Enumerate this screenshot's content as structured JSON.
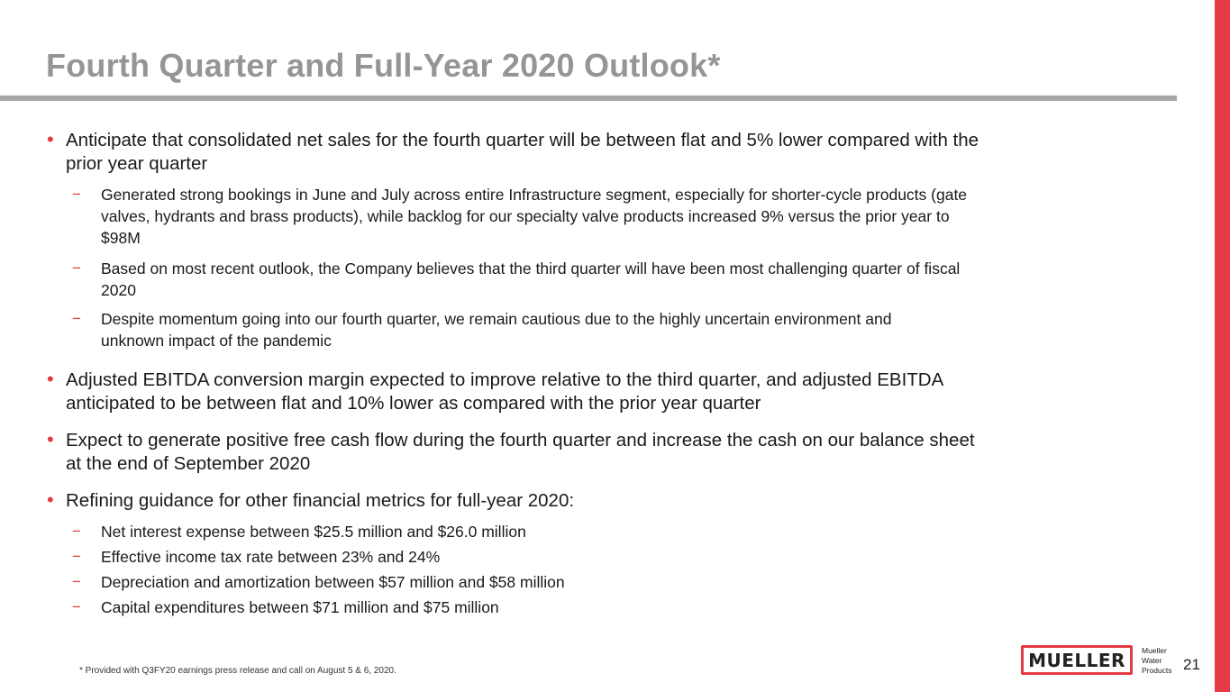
{
  "slide": {
    "title": "Fourth Quarter and Full-Year 2020 Outlook*",
    "bullets": [
      {
        "lines": [
          "Anticipate that consolidated net sales for the fourth quarter will be between flat and 5% lower compared with the",
          "prior year quarter"
        ],
        "subs": [
          {
            "lines": [
              "Generated strong bookings in June and July across entire Infrastructure segment, especially for shorter-cycle products (gate",
              "valves, hydrants and brass products), while backlog for our specialty valve products increased 9% versus the prior year to",
              "$98M"
            ]
          },
          {
            "lines": [
              "Based on most recent outlook, the Company believes that the third quarter will have been most challenging quarter of fiscal",
              "2020"
            ]
          },
          {
            "lines": [
              "Despite momentum going into our fourth quarter, we remain cautious due to the highly uncertain environment and",
              "unknown impact of the pandemic"
            ]
          }
        ]
      },
      {
        "lines": [
          "Adjusted EBITDA conversion margin expected to improve relative to the third quarter, and adjusted EBITDA",
          "anticipated to be between flat and 10% lower as compared with the prior year quarter"
        ]
      },
      {
        "lines": [
          "Expect to generate positive free cash flow during the fourth quarter and increase the cash on our balance sheet",
          "at the end of September 2020"
        ]
      },
      {
        "lines": [
          "Refining guidance for other financial metrics for full-year 2020:"
        ],
        "subs": [
          {
            "lines": [
              "Net interest expense between $25.5 million and $26.0 million"
            ]
          },
          {
            "lines": [
              "Effective income tax rate between 23% and 24%"
            ]
          },
          {
            "lines": [
              "Depreciation and amortization between $57 million and $58 million"
            ]
          },
          {
            "lines": [
              "Capital expenditures between $71 million and $75 million"
            ]
          }
        ]
      }
    ],
    "bullet_symbol": "•",
    "dash_symbol": "−",
    "footnote": "*   Provided with Q3FY20 earnings press release and call on August 5 & 6, 2020.",
    "logo": {
      "word": "MUELLER",
      "sub": [
        "Mueller",
        "Water",
        "Products"
      ]
    },
    "page_number": "21",
    "accent_color": "#e53a45",
    "title_color": "#959595"
  }
}
